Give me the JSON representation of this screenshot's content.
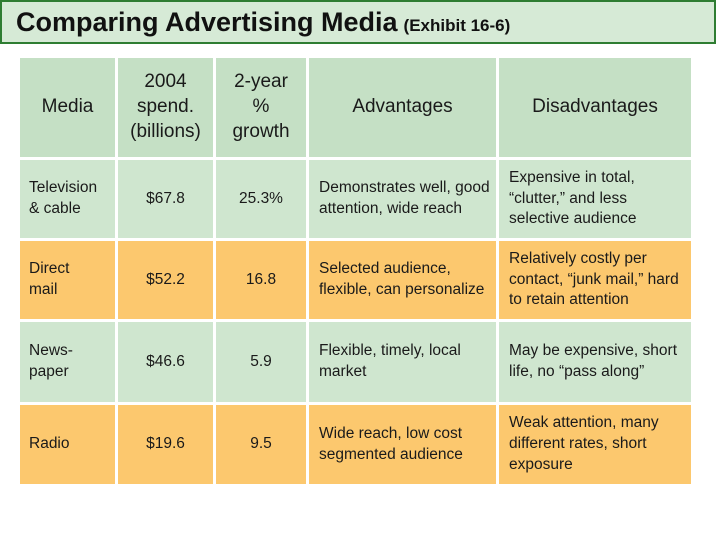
{
  "title": {
    "main": "Comparing Advertising Media",
    "sub": "(Exhibit 16-6)"
  },
  "table": {
    "headers": [
      "Media",
      "2004\nspend.\n(billions)",
      "2-year\n%\ngrowth",
      "Advantages",
      "Disadvantages"
    ],
    "rows": [
      {
        "media": "Television\n& cable",
        "spend": "$67.8",
        "growth": "25.3%",
        "advantages": "Demonstrates well, good attention, wide reach",
        "disadvantages": "Expensive in total, “clutter,” and less selective audience"
      },
      {
        "media": "Direct\nmail",
        "spend": "$52.2",
        "growth": "16.8",
        "advantages": "Selected audience, flexible, can personalize",
        "disadvantages": "Relatively costly per contact, “junk mail,” hard to retain attention"
      },
      {
        "media": "News-\npaper",
        "spend": "$46.6",
        "growth": "5.9",
        "advantages": "Flexible, timely, local market",
        "disadvantages": "May be expensive, short life, no “pass along”"
      },
      {
        "media": "Radio",
        "spend": "$19.6",
        "growth": "9.5",
        "advantages": "Wide reach, low cost segmented audience",
        "disadvantages": "Weak attention, many different rates, short exposure"
      }
    ]
  },
  "colors": {
    "title_bg": "#d6ead6",
    "title_border": "#2e7d32",
    "header_bg": "#c5e0c5",
    "green_cell": "#cfe6cf",
    "orange_cell": "#fcc86e"
  }
}
